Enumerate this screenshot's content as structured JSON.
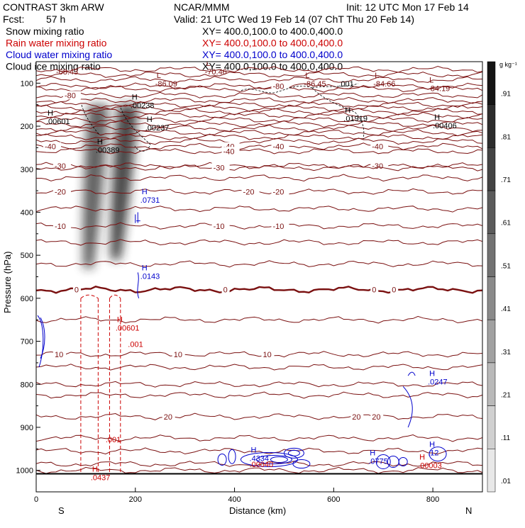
{
  "header": {
    "model": "CONTRAST  3km ARW",
    "org": "NCAR/MMM",
    "init": "Init: 12 UTC Mon 17 Feb 14",
    "fcst_label": "Fcst:",
    "fcst_value": "57 h",
    "valid": "Valid: 21 UTC Wed 19 Feb 14 (07 ChT Thu 20 Feb 14)"
  },
  "chart_data": {
    "type": "cross-section contour",
    "title": "Snow, rain, cloud water and cloud ice mixing ratio cross section",
    "xlabel": "Distance (km)",
    "ylabel": "Pressure (hPa)",
    "xlim": [
      0,
      900
    ],
    "ylim": [
      1050,
      50
    ],
    "x_ticks": [
      0,
      200,
      400,
      600,
      800
    ],
    "y_ticks": [
      100,
      200,
      300,
      400,
      500,
      600,
      700,
      800,
      900,
      1000
    ],
    "end_labels": {
      "left": "S",
      "right": "N"
    },
    "legend": [
      {
        "name": "Snow mixing ratio",
        "xy": "XY=  400.0,100.0 to 400.0,400.0",
        "color": "#000000"
      },
      {
        "name": "Rain water mixing ratio",
        "xy": "XY=  400.0,100.0 to 400.0,400.0",
        "color": "#cc0000"
      },
      {
        "name": "Cloud water mixing ratio",
        "xy": "XY=  400.0,100.0 to 400.0,400.0",
        "color": "#0000cc"
      },
      {
        "name": "Cloud ice mixing ratio",
        "xy": "XY=  400.0,100.0 to 400.0,400.0",
        "color": "#000000"
      }
    ],
    "colorbar": {
      "units": "g kg⁻¹",
      "labels": [
        ".91",
        ".81",
        ".71",
        ".61",
        ".51",
        ".41",
        ".31",
        ".21",
        ".11",
        ".01"
      ],
      "values": [
        0.91,
        0.81,
        0.71,
        0.61,
        0.51,
        0.41,
        0.31,
        0.21,
        0.11,
        0.01
      ]
    },
    "isotherm_color": "#7a1010",
    "isotherms": [
      {
        "label": "-80",
        "p": 128,
        "label_x": [
          40
        ]
      },
      {
        "label": "-80",
        "p": 107,
        "label_x": [
          460
        ]
      },
      {
        "label": "-40",
        "p": 247,
        "label_x": [
          0,
          360,
          460,
          660
        ]
      },
      {
        "label": "-40",
        "p": 258,
        "label_x": [
          360
        ]
      },
      {
        "label": "-30",
        "p": 292,
        "label_x": [
          20,
          340,
          660
        ]
      },
      {
        "label": "-30",
        "p": 296,
        "label_x": [
          340
        ]
      },
      {
        "label": "-20",
        "p": 352,
        "label_x": [
          20,
          400,
          460
        ]
      },
      {
        "label": "-10",
        "p": 432,
        "label_x": [
          20,
          340,
          460
        ]
      },
      {
        "label": "0",
        "p": 580,
        "label_x": [
          60,
          360,
          660,
          700
        ]
      },
      {
        "label": "10",
        "p": 730,
        "label_x": [
          20,
          260,
          440
        ]
      },
      {
        "label": "20",
        "p": 875,
        "label_x": [
          240,
          620,
          660
        ]
      }
    ],
    "extrema_labels": [
      {
        "name": "Low",
        "letter": "",
        "value": "-68.43",
        "x": 40,
        "p": 80,
        "color": "#7a1010"
      },
      {
        "name": "Low",
        "letter": "L",
        "value": "-86.09",
        "x": 240,
        "p": 108,
        "color": "#7a1010"
      },
      {
        "name": "Low",
        "letter": "L",
        "value": "-70.46",
        "x": 340,
        "p": 80,
        "color": "#7a1010"
      },
      {
        "name": "Low",
        "letter": "L",
        "value": "-86.45",
        "x": 540,
        "p": 108,
        "color": "#7a1010"
      },
      {
        "name": "Snow max",
        "letter": "",
        "value": ".001",
        "x": 610,
        "p": 108,
        "color": "#000000"
      },
      {
        "name": "Low",
        "letter": "L",
        "value": "-84.66",
        "x": 680,
        "p": 108,
        "color": "#7a1010"
      },
      {
        "name": "Low",
        "letter": "L",
        "value": "-84.19",
        "x": 790,
        "p": 118,
        "color": "#7a1010"
      },
      {
        "name": "Snow max",
        "letter": "H",
        "value": ".00601",
        "x": 20,
        "p": 195,
        "color": "#000000"
      },
      {
        "name": "Snow max",
        "letter": "H",
        "value": ".00238",
        "x": 190,
        "p": 158,
        "color": "#000000"
      },
      {
        "name": "Snow max",
        "letter": "H",
        "value": ".00237",
        "x": 220,
        "p": 210,
        "color": "#000000"
      },
      {
        "name": "Snow max",
        "letter": "H",
        "value": ".00389",
        "x": 120,
        "p": 262,
        "color": "#000000"
      },
      {
        "name": "Snow max",
        "letter": "H",
        "value": ".01919",
        "x": 620,
        "p": 188,
        "color": "#000000"
      },
      {
        "name": "Snow max",
        "letter": "H",
        "value": ".00406",
        "x": 800,
        "p": 205,
        "color": "#000000"
      },
      {
        "name": "Cloud water max",
        "letter": "H",
        "value": ".0731",
        "x": 210,
        "p": 378,
        "color": "#0000cc"
      },
      {
        "name": "Cloud water max",
        "letter": "H",
        "value": ".0143",
        "x": 210,
        "p": 555,
        "color": "#0000cc"
      },
      {
        "name": "Rain max",
        "letter": "H",
        "value": ".00601",
        "x": 160,
        "p": 675,
        "color": "#cc0000"
      },
      {
        "name": "Rain max",
        "letter": "",
        "value": ".001",
        "x": 185,
        "p": 713,
        "color": "#cc0000"
      },
      {
        "name": "Rain max",
        "letter": "",
        "value": ".001",
        "x": 140,
        "p": 935,
        "color": "#cc0000"
      },
      {
        "name": "Rain max",
        "letter": "H",
        "value": ".0437",
        "x": 110,
        "p": 1023,
        "color": "#cc0000"
      },
      {
        "name": "Cloud water max",
        "letter": "H",
        "value": ".0247",
        "x": 790,
        "p": 800,
        "color": "#0000cc"
      },
      {
        "name": "Cloud water max",
        "letter": "H",
        "value": ".4334",
        "x": 430,
        "p": 978,
        "color": "#0000cc"
      },
      {
        "name": "Rain max",
        "letter": "",
        "value": ".00040",
        "x": 430,
        "p": 992,
        "color": "#cc0000"
      },
      {
        "name": "Cloud water max",
        "letter": "H",
        "value": ".0775",
        "x": 670,
        "p": 985,
        "color": "#0000cc"
      },
      {
        "name": "Cloud water max",
        "letter": "H",
        "value": ".12",
        "x": 790,
        "p": 965,
        "color": "#0000cc"
      },
      {
        "name": "Rain max",
        "letter": "H",
        "value": ".00003",
        "x": 770,
        "p": 995,
        "color": "#cc0000"
      }
    ],
    "snow_plumes": [
      {
        "x_top": 125,
        "p_top": 150,
        "x_bot": 105,
        "p_bot": 530,
        "max": 0.71
      },
      {
        "x_top": 185,
        "p_top": 150,
        "x_bot": 160,
        "p_bot": 510,
        "max": 0.81
      }
    ],
    "rain_shafts_x": [
      90,
      125,
      148,
      170
    ]
  }
}
